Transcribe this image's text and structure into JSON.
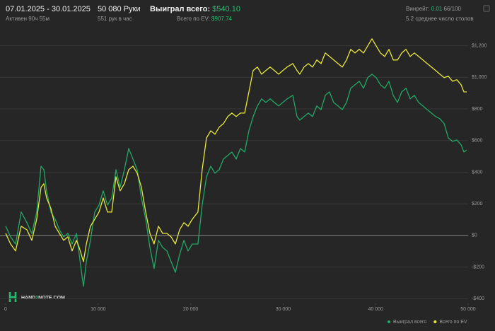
{
  "header": {
    "period": "07.01.2025 - 30.01.2025",
    "active": "Активен 90ч 55м",
    "hands": "50 080 Руки",
    "rate": "551 рук в час",
    "won_label": "Выиграл всего:",
    "won_value": "$540.10",
    "ev_label": "Всего по EV:",
    "ev_value": "$907.74",
    "winrate_label": "Винрейт:",
    "winrate_value": "0.01",
    "winrate_extra": "66/100",
    "tables": "5.2 среднее число столов"
  },
  "logo": [
    "HAND",
    "2",
    "NOTE.COM"
  ],
  "chart_data": {
    "type": "line",
    "x": [
      0,
      535,
      1070,
      1680,
      2290,
      2830,
      3360,
      3820,
      4130,
      4430,
      4890,
      5350,
      5810,
      6270,
      6730,
      7190,
      7650,
      7950,
      8410,
      8720,
      9170,
      9630,
      10090,
      10550,
      11010,
      11470,
      11930,
      12380,
      12840,
      13300,
      13760,
      14220,
      14680,
      15140,
      15600,
      16050,
      16510,
      16970,
      17430,
      17890,
      18350,
      18810,
      19270,
      19720,
      20180,
      20790,
      21250,
      21710,
      22170,
      22630,
      23090,
      23550,
      24010,
      24460,
      24920,
      25380,
      25840,
      26300,
      26760,
      27220,
      27670,
      28130,
      28590,
      29050,
      29510,
      29970,
      30430,
      31040,
      31500,
      31800,
      32260,
      32720,
      33180,
      33640,
      34100,
      34560,
      35010,
      35470,
      35930,
      36390,
      36850,
      37310,
      37770,
      38230,
      38690,
      39140,
      39600,
      40060,
      40520,
      40980,
      41440,
      41900,
      42360,
      42820,
      43280,
      43730,
      44190,
      44650,
      45110,
      45570,
      46030,
      46490,
      46950,
      47410,
      47860,
      48320,
      48780,
      49240,
      49540,
      49850
    ],
    "series": [
      {
        "name": "Выиграл всего",
        "color": "#20a866",
        "values": [
          58,
          -9,
          -54,
          148,
          81,
          13,
          148,
          438,
          416,
          282,
          148,
          103,
          36,
          -9,
          13,
          -54,
          13,
          -121,
          -322,
          -166,
          -31,
          148,
          192,
          282,
          192,
          237,
          416,
          304,
          416,
          550,
          483,
          416,
          237,
          103,
          -76,
          -210,
          -31,
          -76,
          -98,
          -166,
          -233,
          -121,
          -31,
          -98,
          -54,
          -54,
          192,
          371,
          438,
          394,
          416,
          483,
          506,
          528,
          483,
          550,
          528,
          662,
          752,
          819,
          864,
          841,
          864,
          841,
          819,
          841,
          864,
          886,
          752,
          729,
          752,
          774,
          752,
          819,
          796,
          886,
          908,
          841,
          819,
          796,
          841,
          931,
          953,
          975,
          931,
          998,
          1020,
          998,
          953,
          931,
          975,
          886,
          841,
          908,
          931,
          864,
          886,
          841,
          819,
          796,
          774,
          752,
          738,
          707,
          617,
          595,
          604,
          573,
          528,
          540.1
        ]
      },
      {
        "name": "Всего по EV",
        "color": "#e8e83a",
        "values": [
          13,
          -54,
          -98,
          58,
          36,
          -31,
          103,
          304,
          327,
          237,
          170,
          58,
          13,
          -31,
          -9,
          -98,
          -31,
          -76,
          -166,
          -54,
          58,
          103,
          148,
          237,
          148,
          148,
          371,
          282,
          327,
          416,
          438,
          394,
          304,
          148,
          13,
          -54,
          58,
          13,
          13,
          -9,
          -54,
          36,
          81,
          58,
          103,
          148,
          416,
          617,
          662,
          640,
          685,
          707,
          752,
          774,
          752,
          774,
          774,
          908,
          1043,
          1065,
          1020,
          1043,
          1065,
          1043,
          1020,
          1043,
          1065,
          1087,
          1043,
          1020,
          1065,
          1087,
          1065,
          1110,
          1087,
          1154,
          1132,
          1110,
          1087,
          1065,
          1110,
          1177,
          1154,
          1177,
          1154,
          1199,
          1244,
          1199,
          1154,
          1132,
          1177,
          1110,
          1110,
          1154,
          1177,
          1132,
          1154,
          1132,
          1110,
          1087,
          1065,
          1043,
          1020,
          998,
          1007,
          975,
          985,
          953,
          908,
          907.74
        ]
      }
    ],
    "xlim": [
      0,
      50000
    ],
    "xticks": [
      0,
      {
        "value": 10000,
        "label": "10 000"
      },
      {
        "value": 20000,
        "label": "20 000"
      },
      {
        "value": 30000,
        "label": "30 000"
      },
      {
        "value": 40000,
        "label": "40 000"
      },
      {
        "value": 50000,
        "label": "50 000"
      }
    ],
    "ylim": [
      -430,
      1270
    ],
    "yticks": [
      {
        "value": 1200,
        "label": "$1,200"
      },
      {
        "value": 1000,
        "label": "$1,000"
      },
      {
        "value": 800,
        "label": "$800"
      },
      {
        "value": 600,
        "label": "$600"
      },
      {
        "value": 400,
        "label": "$400"
      },
      {
        "value": 200,
        "label": "$200"
      },
      {
        "value": 0,
        "label": "$0"
      },
      {
        "value": -200,
        "label": "-$200"
      },
      {
        "value": -400,
        "label": "-$400"
      }
    ],
    "grid": true,
    "legend": "bottom-right"
  }
}
